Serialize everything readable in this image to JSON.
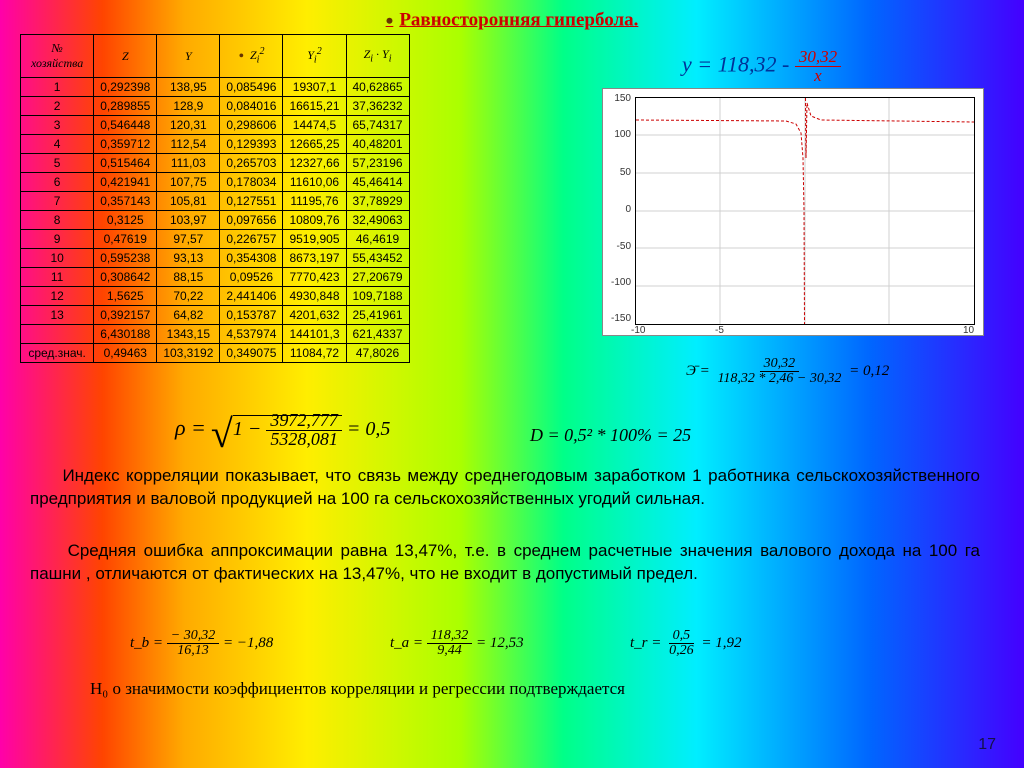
{
  "title": "Равносторонняя гипербола.",
  "equation_top": {
    "lhs": "y = 118,32 -",
    "num": "30,32",
    "den": "x"
  },
  "table": {
    "columns": [
      "№ хозяйства",
      "Z",
      "Y",
      "Z_i^2",
      "Y_i^2",
      "Z_i · Y_i"
    ],
    "rows": [
      [
        "1",
        "0,292398",
        "138,95",
        "0,085496",
        "19307,1",
        "40,62865"
      ],
      [
        "2",
        "0,289855",
        "128,9",
        "0,084016",
        "16615,21",
        "37,36232"
      ],
      [
        "3",
        "0,546448",
        "120,31",
        "0,298606",
        "14474,5",
        "65,74317"
      ],
      [
        "4",
        "0,359712",
        "112,54",
        "0,129393",
        "12665,25",
        "40,48201"
      ],
      [
        "5",
        "0,515464",
        "111,03",
        "0,265703",
        "12327,66",
        "57,23196"
      ],
      [
        "6",
        "0,421941",
        "107,75",
        "0,178034",
        "11610,06",
        "45,46414"
      ],
      [
        "7",
        "0,357143",
        "105,81",
        "0,127551",
        "11195,76",
        "37,78929"
      ],
      [
        "8",
        "0,3125",
        "103,97",
        "0,097656",
        "10809,76",
        "32,49063"
      ],
      [
        "9",
        "0,47619",
        "97,57",
        "0,226757",
        "9519,905",
        "46,4619"
      ],
      [
        "10",
        "0,595238",
        "93,13",
        "0,354308",
        "8673,197",
        "55,43452"
      ],
      [
        "11",
        "0,308642",
        "88,15",
        "0,09526",
        "7770,423",
        "27,20679"
      ],
      [
        "12",
        "1,5625",
        "70,22",
        "2,441406",
        "4930,848",
        "109,7188"
      ],
      [
        "13",
        "0,392157",
        "64,82",
        "0,153787",
        "4201,632",
        "25,41961"
      ],
      [
        "",
        "6,430188",
        "1343,15",
        "4,537974",
        "144101,3",
        "621,4337"
      ],
      [
        "сред.знач.",
        "0,49463",
        "103,3192",
        "0,349075",
        "11084,72",
        "47,8026"
      ]
    ]
  },
  "chart": {
    "type": "line",
    "xlim": [
      -10,
      10
    ],
    "ylim": [
      -150,
      150
    ],
    "ytick_step": 50,
    "xtick_step": 5,
    "grid_color": "#d0d0d0",
    "curve_color": "#cc0000",
    "background_color": "#ffffff"
  },
  "formula_rho": {
    "text": "ρ =",
    "inner_num": "3972,777",
    "inner_den": "5328,081",
    "result": "= 0,5"
  },
  "formula_D": "D = 0,5² * 100% = 25",
  "formula_E": {
    "lhs": "Э̄ =",
    "num": "30,32",
    "den": "118,32 * 2,46 − 30,32",
    "result": "= 0,12"
  },
  "paragraph1": "Индекс корреляции показывает, что связь между среднегодовым заработком 1 работника сельскохозяйственного предприятия и  валовой продукцией на 100 га сельскохозяйственных угодий сильная.",
  "paragraph2": "Средняя ошибка аппроксимации равна 13,47%, т.е. в среднем расчетные значения валового дохода на 100 га пашни , отличаются от фактических на 13,47%, что не входит в допустимый предел.",
  "formula_tb": {
    "lhs": "t_b =",
    "num": "− 30,32",
    "den": "16,13",
    "result": "= −1,88"
  },
  "formula_ta": {
    "lhs": "t_a =",
    "num": "118,32",
    "den": "9,44",
    "result": "= 12,53"
  },
  "formula_tr": {
    "lhs": "t_r =",
    "num": "0,5",
    "den": "0,26",
    "result": "= 1,92"
  },
  "hypothesis": "H₀ о значимости коэффициентов корреляции и регрессии  подтверждается",
  "page_number": "17"
}
